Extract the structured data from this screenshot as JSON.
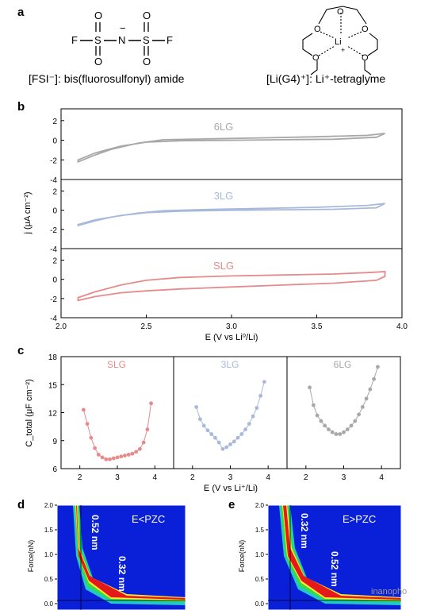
{
  "panel_labels": {
    "a": "a",
    "b": "b",
    "c": "c",
    "d": "d",
    "e": "e"
  },
  "panel_a": {
    "fsi_caption": "[FSI⁻]: bis(fluorosulfonyl) amide",
    "lig4_caption": "[Li(G4)⁺]: Li⁺-tetraglyme",
    "fsi_atoms": {
      "F": "F",
      "S": "S",
      "N": "N",
      "O": "O",
      "minus": "−"
    },
    "lig4_atoms": {
      "O": "O",
      "Li": "Li",
      "plus": "+"
    }
  },
  "panel_b_axes": {
    "ylabel": "j (μA cm⁻²)",
    "xlabel": "E (V vs Li⁰/Li)",
    "yticks": [
      "-4",
      "-2",
      "0",
      "2"
    ],
    "xticks": [
      "2.0",
      "2.5",
      "3.0",
      "3.5",
      "4.0"
    ]
  },
  "panel_c_axes": {
    "ylabel": "C_total (μF cm⁻²)",
    "xlabel": "E (V vs Li⁺/Li)",
    "yticks": [
      "6",
      "9",
      "12",
      "15",
      "18"
    ],
    "xticks": [
      "2",
      "3",
      "4"
    ]
  },
  "panel_de_axes": {
    "ylabel": "Force(nN)",
    "yticks": [
      "0.0",
      "0.5",
      "1.0",
      "1.5",
      "2.0"
    ],
    "d_condition": "E<PZC",
    "e_condition": "E>PZC",
    "d_annot_1": "0.52 nm",
    "d_annot_2": "0.32 nm",
    "e_annot_1": "0.32 nm",
    "e_annot_2": "0.52 nm"
  },
  "watermark": "inanopho",
  "chart_data": [
    {
      "type": "line",
      "panel": "b",
      "xlabel": "E (V vs Li⁰/Li)",
      "ylabel": "j (μA cm⁻²)",
      "xlim": [
        2.0,
        4.0
      ],
      "series": [
        {
          "name": "6LG",
          "color": "#a8a8a8",
          "x_fwd": [
            2.1,
            2.2,
            2.35,
            2.5,
            2.7,
            3.0,
            3.3,
            3.6,
            3.85,
            3.9
          ],
          "y_fwd": [
            -2.0,
            -1.3,
            -0.6,
            -0.2,
            -0.05,
            0.0,
            0.05,
            0.1,
            0.3,
            0.7
          ],
          "x_rev": [
            3.9,
            3.8,
            3.5,
            3.2,
            2.9,
            2.6,
            2.45,
            2.3,
            2.2,
            2.1
          ],
          "y_rev": [
            0.7,
            0.5,
            0.35,
            0.25,
            0.15,
            0.05,
            -0.3,
            -0.9,
            -1.5,
            -2.2
          ]
        },
        {
          "name": "3LG",
          "color": "#a8b9db",
          "x_fwd": [
            2.1,
            2.2,
            2.35,
            2.5,
            2.7,
            3.0,
            3.3,
            3.6,
            3.85,
            3.9
          ],
          "y_fwd": [
            -1.5,
            -1.0,
            -0.55,
            -0.25,
            -0.1,
            0.0,
            0.05,
            0.1,
            0.25,
            0.7
          ],
          "x_rev": [
            3.9,
            3.8,
            3.5,
            3.2,
            2.9,
            2.6,
            2.45,
            2.3,
            2.2,
            2.1
          ],
          "y_rev": [
            0.7,
            0.5,
            0.3,
            0.2,
            0.1,
            -0.05,
            -0.3,
            -0.7,
            -1.1,
            -1.6
          ]
        },
        {
          "name": "SLG",
          "color": "#e78a8a",
          "x_fwd": [
            2.1,
            2.2,
            2.35,
            2.5,
            2.7,
            3.0,
            3.3,
            3.6,
            3.85,
            3.9
          ],
          "y_fwd": [
            -2.2,
            -1.8,
            -1.4,
            -1.2,
            -1.0,
            -0.8,
            -0.6,
            -0.4,
            -0.1,
            0.3
          ],
          "x_rev": [
            3.9,
            3.8,
            3.6,
            3.3,
            3.0,
            2.7,
            2.5,
            2.35,
            2.2,
            2.1
          ],
          "y_rev": [
            0.8,
            0.7,
            0.55,
            0.45,
            0.35,
            0.2,
            -0.1,
            -0.6,
            -1.3,
            -1.9
          ]
        }
      ]
    },
    {
      "type": "scatter",
      "panel": "c",
      "xlabel": "E (V vs Li⁺/Li)",
      "ylabel": "C_total (μF cm⁻²)",
      "ylim": [
        6,
        18
      ],
      "xlim": [
        1.5,
        4.5
      ],
      "series": [
        {
          "name": "SLG",
          "color": "#e78a8a",
          "x": [
            2.1,
            2.2,
            2.3,
            2.4,
            2.5,
            2.6,
            2.7,
            2.8,
            2.9,
            3.0,
            3.1,
            3.2,
            3.3,
            3.4,
            3.5,
            3.6,
            3.7,
            3.8,
            3.9
          ],
          "y": [
            12.3,
            10.8,
            9.3,
            8.2,
            7.5,
            7.2,
            7.0,
            7.0,
            7.1,
            7.2,
            7.3,
            7.4,
            7.5,
            7.6,
            7.8,
            8.1,
            8.8,
            10.2,
            13.0
          ]
        },
        {
          "name": "3LG",
          "color": "#a8b9db",
          "x": [
            2.1,
            2.2,
            2.3,
            2.4,
            2.5,
            2.6,
            2.7,
            2.8,
            2.9,
            3.0,
            3.1,
            3.2,
            3.3,
            3.4,
            3.5,
            3.6,
            3.7,
            3.8,
            3.9
          ],
          "y": [
            12.6,
            11.3,
            10.6,
            10.1,
            9.7,
            9.3,
            8.8,
            8.1,
            8.3,
            8.6,
            8.9,
            9.3,
            9.7,
            10.2,
            10.8,
            11.6,
            12.5,
            13.8,
            15.3
          ]
        },
        {
          "name": "6LG",
          "color": "#a8a8a8",
          "x": [
            2.1,
            2.2,
            2.3,
            2.4,
            2.5,
            2.6,
            2.7,
            2.8,
            2.9,
            3.0,
            3.1,
            3.2,
            3.3,
            3.4,
            3.5,
            3.6,
            3.7,
            3.8,
            3.9
          ],
          "y": [
            14.7,
            12.8,
            11.7,
            11.1,
            10.6,
            10.2,
            9.9,
            9.7,
            9.7,
            9.9,
            10.2,
            10.6,
            11.1,
            11.8,
            12.6,
            13.5,
            14.5,
            15.6,
            16.9
          ]
        }
      ]
    }
  ]
}
